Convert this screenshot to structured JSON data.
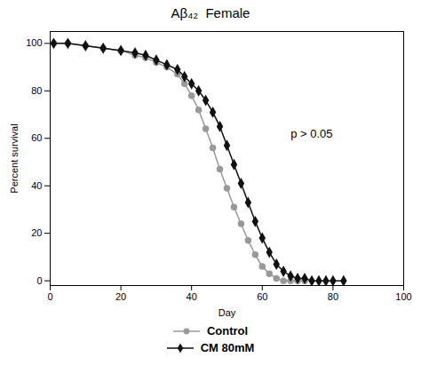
{
  "chart_data": {
    "type": "line",
    "title": "Aβ₄₂  Female",
    "x_label": "Day",
    "y_label": "Percent survival",
    "xlim": [
      0,
      100
    ],
    "ylim": [
      -2,
      105
    ],
    "xticks": [
      0,
      20,
      40,
      60,
      80,
      100
    ],
    "yticks": [
      0,
      20,
      40,
      60,
      80,
      100
    ],
    "grid": false,
    "legend": "bottom",
    "series": [
      {
        "name": "Control",
        "color": "#999999",
        "marker": "circle",
        "line_style": "solid",
        "x": [
          1,
          5,
          10,
          15,
          20,
          24,
          27,
          30,
          33,
          36,
          38,
          40,
          42,
          44,
          46,
          48,
          50,
          52,
          54,
          56,
          58,
          60,
          62,
          64,
          66,
          68,
          70,
          72
        ],
        "values": [
          100,
          100,
          99,
          98,
          97,
          95,
          94,
          92,
          90,
          87,
          83,
          78,
          72,
          64,
          56,
          47,
          39,
          31,
          24,
          17,
          11,
          6,
          3,
          1,
          0,
          0,
          0,
          0
        ]
      },
      {
        "name": "CM 80mM",
        "color": "#111111",
        "marker": "diamond",
        "line_style": "solid",
        "x": [
          1,
          5,
          10,
          15,
          20,
          24,
          27,
          30,
          33,
          36,
          38,
          40,
          42,
          44,
          46,
          48,
          50,
          52,
          54,
          56,
          58,
          60,
          62,
          64,
          66,
          68,
          70,
          72,
          74,
          76,
          78,
          80,
          83
        ],
        "values": [
          100,
          100,
          99,
          98,
          97,
          96,
          95,
          93,
          91,
          89,
          86,
          83,
          80,
          76,
          71,
          65,
          57,
          49,
          41,
          33,
          25,
          18,
          12,
          7,
          4,
          2,
          1,
          1,
          0,
          0,
          0,
          0,
          0
        ]
      }
    ],
    "annotations": [
      {
        "text": "p > 0.05",
        "x": 68,
        "y": 62
      }
    ]
  }
}
